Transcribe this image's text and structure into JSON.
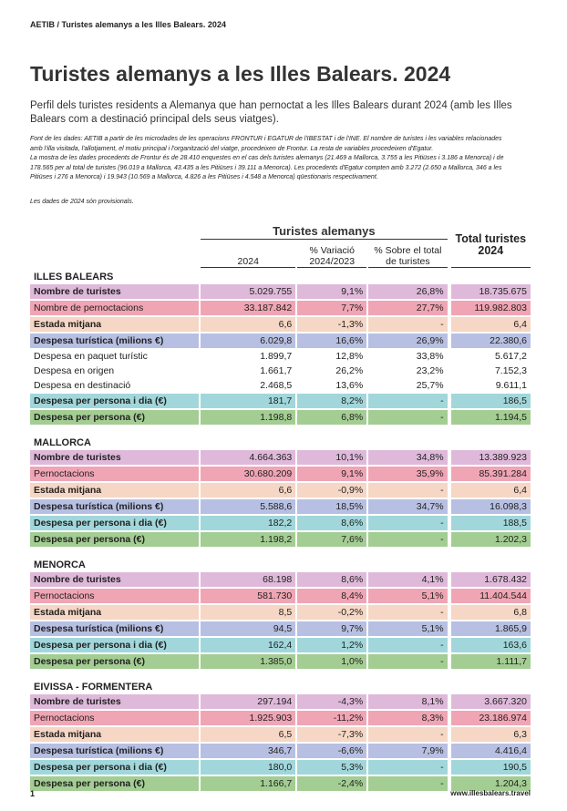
{
  "header": {
    "breadcrumb": "AETIB / Turistes alemanys a les Illes Balears. 2024"
  },
  "title": "Turistes alemanys a les Illes Balears. 2024",
  "subtitle": "Perfil dels turistes residents a Alemanya que han pernoctat a les Illes Balears durant 2024 (amb les Illes Balears com a destinació principal dels seus viatges).",
  "notes": [
    "Font de les dades: AETIB a partir de les microdades de les operacions FRONTUR i EGATUR de l'IBESTAT i de l'INE. El nombre de turistes i les variables relacionades amb l'illa visitada, l'allotjament, el motiu principal i l'organització del viatge, procedeixen de Frontur. La resta de variables procedeixen d'Egatur.",
    "La mostra de les dades procedents de Frontur és de 28.410 enquestes en el cas dels turistes alemanys (21.469 a Mallorca, 3.755 a les Pitiüses i 3.186 a Menorca) i de 178.565 per al total de turistes (96.019 a Mallorca, 43.435 a les Pitiüses i 39.111 a Menorca). Les procedents d'Egatur compten amb 3.272 (2.650 a Mallorca, 346 a les Pitiüses i 276 a Menorca) i 19.943 (10.569 a Mallorca, 4.826 a les Pitiüses i 4.548 a Menorca) qüestionaris respectivament.",
    "Les dades de 2024 són provisionals."
  ],
  "table": {
    "group_header": "Turistes alemanys",
    "columns": [
      "2024",
      "% Variació 2024/2023",
      "% Sobre el total de turistes",
      "Total turistes 2024"
    ],
    "sections": [
      {
        "title": "ILLES BALEARS",
        "rows": [
          [
            "Nombre de turistes",
            "5.029.755",
            "9,1%",
            "26,8%",
            "18.735.675"
          ],
          [
            "Nombre de pernoctacions",
            "33.187.842",
            "7,7%",
            "27,7%",
            "119.982.803"
          ],
          [
            "Estada mitjana",
            "6,6",
            "-1,3%",
            "-",
            "6,4"
          ],
          [
            "Despesa turística (milions €)",
            "6.029,8",
            "16,6%",
            "26,9%",
            "22.380,6"
          ],
          [
            "Despesa en paquet turístic",
            "1.899,7",
            "12,8%",
            "33,8%",
            "5.617,2"
          ],
          [
            "Despesa en origen",
            "1.661,7",
            "26,2%",
            "23,2%",
            "7.152,3"
          ],
          [
            "Despesa en destinació",
            "2.468,5",
            "13,6%",
            "25,7%",
            "9.611,1"
          ],
          [
            "Despesa per persona i dia (€)",
            "181,7",
            "8,2%",
            "-",
            "186,5"
          ],
          [
            "Despesa per persona (€)",
            "1.198,8",
            "6,8%",
            "-",
            "1.194,5"
          ]
        ]
      },
      {
        "title": "MALLORCA",
        "rows": [
          [
            "Nombre de turistes",
            "4.664.363",
            "10,1%",
            "34,8%",
            "13.389.923"
          ],
          [
            "Pernoctacions",
            "30.680.209",
            "9,1%",
            "35,9%",
            "85.391.284"
          ],
          [
            "Estada mitjana",
            "6,6",
            "-0,9%",
            "-",
            "6,4"
          ],
          [
            "Despesa turística (milions €)",
            "5.588,6",
            "18,5%",
            "34,7%",
            "16.098,3"
          ],
          [
            "Despesa per persona i dia (€)",
            "182,2",
            "8,6%",
            "-",
            "188,5"
          ],
          [
            "Despesa per persona (€)",
            "1.198,2",
            "7,6%",
            "-",
            "1.202,3"
          ]
        ]
      },
      {
        "title": "MENORCA",
        "rows": [
          [
            "Nombre de turistes",
            "68.198",
            "8,6%",
            "4,1%",
            "1.678.432"
          ],
          [
            "Pernoctacions",
            "581.730",
            "8,4%",
            "5,1%",
            "11.404.544"
          ],
          [
            "Estada mitjana",
            "8,5",
            "-0,2%",
            "-",
            "6,8"
          ],
          [
            "Despesa turística (milions €)",
            "94,5",
            "9,7%",
            "5,1%",
            "1.865,9"
          ],
          [
            "Despesa per persona i dia (€)",
            "162,4",
            "1,2%",
            "-",
            "163,6"
          ],
          [
            "Despesa per persona (€)",
            "1.385,0",
            "1,0%",
            "-",
            "1.111,7"
          ]
        ]
      },
      {
        "title": "EIVISSA - FORMENTERA",
        "rows": [
          [
            "Nombre de turistes",
            "297.194",
            "-4,3%",
            "8,1%",
            "3.667.320"
          ],
          [
            "Pernoctacions",
            "1.925.903",
            "-11,2%",
            "8,3%",
            "23.186.974"
          ],
          [
            "Estada mitjana",
            "6,5",
            "-7,3%",
            "-",
            "6,3"
          ],
          [
            "Despesa turística (milions €)",
            "346,7",
            "-6,6%",
            "7,9%",
            "4.416,4"
          ],
          [
            "Despesa per persona i dia (€)",
            "180,0",
            "5,3%",
            "-",
            "190,5"
          ],
          [
            "Despesa per persona (€)",
            "1.166,7",
            "-2,4%",
            "-",
            "1.204,3"
          ]
        ]
      }
    ]
  },
  "footer": {
    "page": "1",
    "site": "www.illesbalears.travel"
  }
}
